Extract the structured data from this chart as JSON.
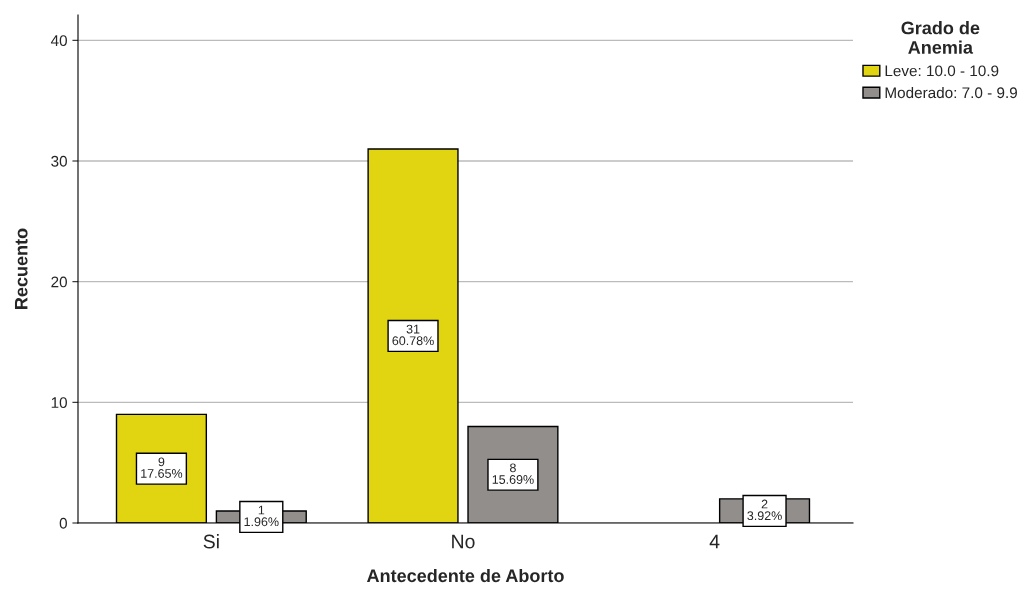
{
  "chart_data": {
    "type": "bar",
    "xlabel": "Antecedente de Aborto",
    "ylabel": "Recuento",
    "legend_title": "Grado de\nAnemia",
    "categories": [
      "Si",
      "No",
      "4"
    ],
    "series": [
      {
        "name": "Leve: 10.0 - 10.9",
        "color": "#e1d410",
        "values": [
          9,
          31,
          null
        ],
        "value_labels": [
          "9\n17.65%",
          "31\n60.78%",
          null
        ]
      },
      {
        "name": "Moderado: 7.0 - 9.9",
        "color": "#918e8c",
        "values": [
          1,
          8,
          2
        ],
        "value_labels": [
          "1\n1.96%",
          "8\n15.69%",
          "2\n3.92%"
        ]
      }
    ],
    "ylim": [
      0,
      42.1
    ],
    "yticks": [
      0,
      10,
      20,
      30,
      40
    ],
    "grid": "y",
    "legend": "top right"
  }
}
